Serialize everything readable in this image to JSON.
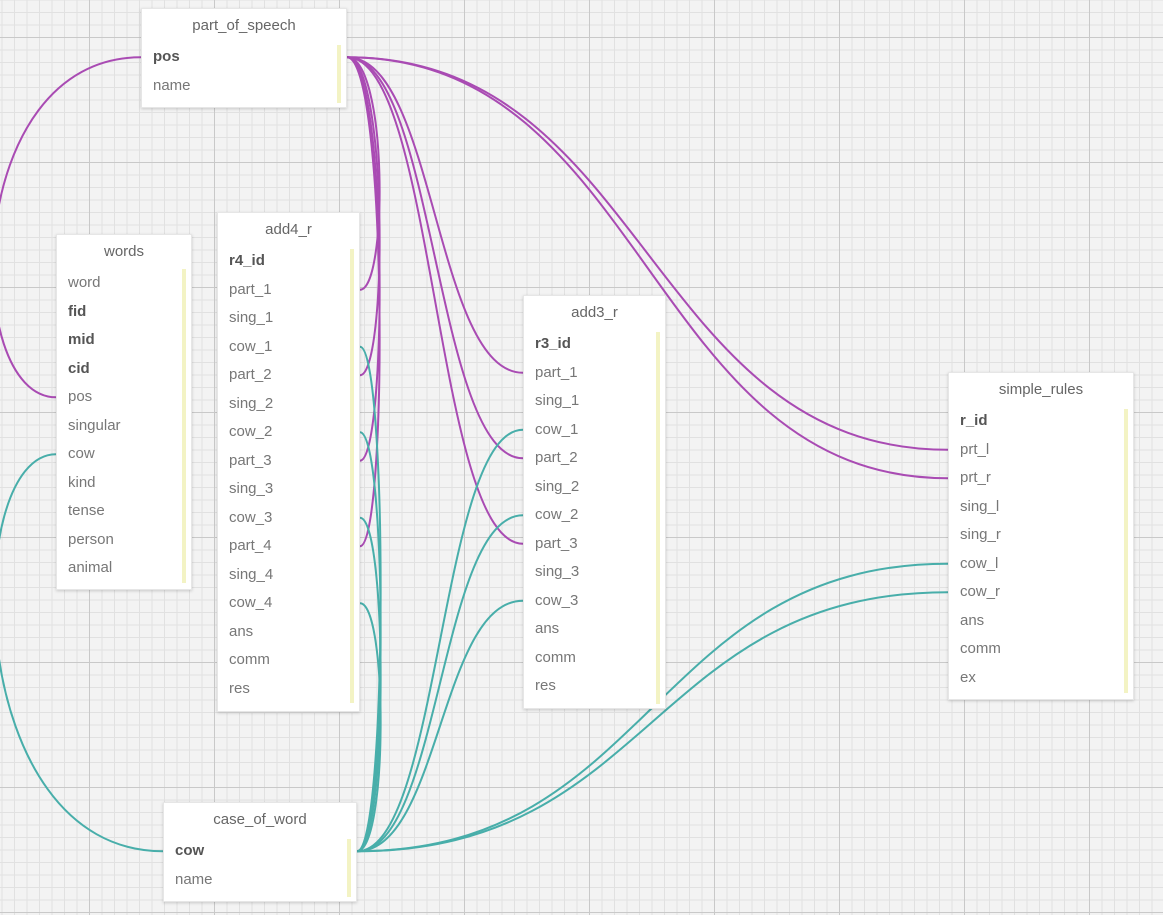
{
  "colors": {
    "pos_link": "#a94bb3",
    "cow_link": "#48aeaa",
    "scrollbar": "#f3f3c4"
  },
  "tables": {
    "part_of_speech": {
      "name": "part_of_speech",
      "fields": [
        {
          "label": "pos",
          "key": true
        },
        {
          "label": "name",
          "key": false
        }
      ]
    },
    "words": {
      "name": "words",
      "fields": [
        {
          "label": "word",
          "key": false
        },
        {
          "label": "fid",
          "key": true
        },
        {
          "label": "mid",
          "key": true
        },
        {
          "label": "cid",
          "key": true
        },
        {
          "label": "pos",
          "key": false
        },
        {
          "label": "singular",
          "key": false
        },
        {
          "label": "cow",
          "key": false
        },
        {
          "label": "kind",
          "key": false
        },
        {
          "label": "tense",
          "key": false
        },
        {
          "label": "person",
          "key": false
        },
        {
          "label": "animal",
          "key": false
        }
      ]
    },
    "add4_r": {
      "name": "add4_r",
      "fields": [
        {
          "label": "r4_id",
          "key": true
        },
        {
          "label": "part_1",
          "key": false
        },
        {
          "label": "sing_1",
          "key": false
        },
        {
          "label": "cow_1",
          "key": false
        },
        {
          "label": "part_2",
          "key": false
        },
        {
          "label": "sing_2",
          "key": false
        },
        {
          "label": "cow_2",
          "key": false
        },
        {
          "label": "part_3",
          "key": false
        },
        {
          "label": "sing_3",
          "key": false
        },
        {
          "label": "cow_3",
          "key": false
        },
        {
          "label": "part_4",
          "key": false
        },
        {
          "label": "sing_4",
          "key": false
        },
        {
          "label": "cow_4",
          "key": false
        },
        {
          "label": "ans",
          "key": false
        },
        {
          "label": "comm",
          "key": false
        },
        {
          "label": "res",
          "key": false
        }
      ]
    },
    "add3_r": {
      "name": "add3_r",
      "fields": [
        {
          "label": "r3_id",
          "key": true
        },
        {
          "label": "part_1",
          "key": false
        },
        {
          "label": "sing_1",
          "key": false
        },
        {
          "label": "cow_1",
          "key": false
        },
        {
          "label": "part_2",
          "key": false
        },
        {
          "label": "sing_2",
          "key": false
        },
        {
          "label": "cow_2",
          "key": false
        },
        {
          "label": "part_3",
          "key": false
        },
        {
          "label": "sing_3",
          "key": false
        },
        {
          "label": "cow_3",
          "key": false
        },
        {
          "label": "ans",
          "key": false
        },
        {
          "label": "comm",
          "key": false
        },
        {
          "label": "res",
          "key": false
        }
      ]
    },
    "simple_rules": {
      "name": "simple_rules",
      "fields": [
        {
          "label": "r_id",
          "key": true
        },
        {
          "label": "prt_l",
          "key": false
        },
        {
          "label": "prt_r",
          "key": false
        },
        {
          "label": "sing_l",
          "key": false
        },
        {
          "label": "sing_r",
          "key": false
        },
        {
          "label": "cow_l",
          "key": false
        },
        {
          "label": "cow_r",
          "key": false
        },
        {
          "label": "ans",
          "key": false
        },
        {
          "label": "comm",
          "key": false
        },
        {
          "label": "ex",
          "key": false
        }
      ]
    },
    "case_of_word": {
      "name": "case_of_word",
      "fields": [
        {
          "label": "cow",
          "key": true
        },
        {
          "label": "name",
          "key": false
        }
      ]
    }
  },
  "relations": [
    {
      "from": "part_of_speech.pos",
      "to": "words.pos",
      "kind": "pos"
    },
    {
      "from": "part_of_speech.pos",
      "to": "add4_r.part_1",
      "kind": "pos"
    },
    {
      "from": "part_of_speech.pos",
      "to": "add4_r.part_2",
      "kind": "pos"
    },
    {
      "from": "part_of_speech.pos",
      "to": "add4_r.part_3",
      "kind": "pos"
    },
    {
      "from": "part_of_speech.pos",
      "to": "add4_r.part_4",
      "kind": "pos"
    },
    {
      "from": "part_of_speech.pos",
      "to": "add3_r.part_1",
      "kind": "pos"
    },
    {
      "from": "part_of_speech.pos",
      "to": "add3_r.part_2",
      "kind": "pos"
    },
    {
      "from": "part_of_speech.pos",
      "to": "add3_r.part_3",
      "kind": "pos"
    },
    {
      "from": "part_of_speech.pos",
      "to": "simple_rules.prt_l",
      "kind": "pos"
    },
    {
      "from": "part_of_speech.pos",
      "to": "simple_rules.prt_r",
      "kind": "pos"
    },
    {
      "from": "case_of_word.cow",
      "to": "words.cow",
      "kind": "cow"
    },
    {
      "from": "case_of_word.cow",
      "to": "add4_r.cow_1",
      "kind": "cow"
    },
    {
      "from": "case_of_word.cow",
      "to": "add4_r.cow_2",
      "kind": "cow"
    },
    {
      "from": "case_of_word.cow",
      "to": "add4_r.cow_3",
      "kind": "cow"
    },
    {
      "from": "case_of_word.cow",
      "to": "add4_r.cow_4",
      "kind": "cow"
    },
    {
      "from": "case_of_word.cow",
      "to": "add3_r.cow_1",
      "kind": "cow"
    },
    {
      "from": "case_of_word.cow",
      "to": "add3_r.cow_2",
      "kind": "cow"
    },
    {
      "from": "case_of_word.cow",
      "to": "add3_r.cow_3",
      "kind": "cow"
    },
    {
      "from": "case_of_word.cow",
      "to": "simple_rules.cow_l",
      "kind": "cow"
    },
    {
      "from": "case_of_word.cow",
      "to": "simple_rules.cow_r",
      "kind": "cow"
    }
  ]
}
